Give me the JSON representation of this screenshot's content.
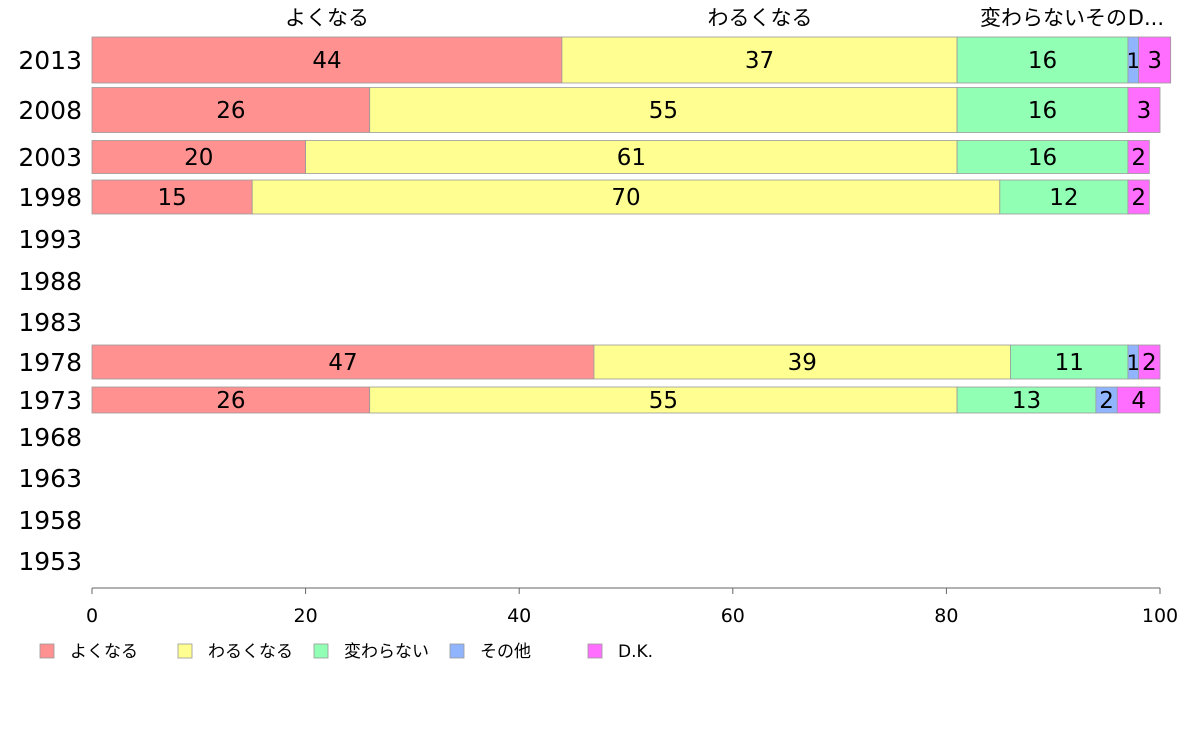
{
  "chart_data": {
    "type": "bar",
    "orientation": "horizontal",
    "stacked": true,
    "xlim": [
      0,
      100
    ],
    "x_ticks": [
      0,
      20,
      40,
      60,
      80,
      100
    ],
    "x_tick_labels": [
      "0",
      "20",
      "40",
      "60",
      "80",
      "100"
    ],
    "categories": [
      "2013",
      "2008",
      "2003",
      "1998",
      "1993",
      "1988",
      "1983",
      "1978",
      "1973",
      "1968",
      "1963",
      "1958",
      "1953"
    ],
    "series": [
      {
        "name": "よくなる",
        "color": "#ff9191",
        "values": [
          44,
          26,
          20,
          15,
          null,
          null,
          null,
          47,
          26,
          null,
          null,
          null,
          null
        ]
      },
      {
        "name": "わるくなる",
        "color": "#ffff91",
        "values": [
          37,
          55,
          61,
          70,
          null,
          null,
          null,
          39,
          55,
          null,
          null,
          null,
          null
        ]
      },
      {
        "name": "変わらない",
        "color": "#91ffb4",
        "values": [
          16,
          16,
          16,
          12,
          null,
          null,
          null,
          11,
          13,
          null,
          null,
          null,
          null
        ]
      },
      {
        "name": "その他",
        "color": "#91b4ff",
        "values": [
          1,
          0,
          0,
          0,
          null,
          null,
          null,
          1,
          2,
          null,
          null,
          null,
          null
        ]
      },
      {
        "name": "D.K.",
        "color": "#ff6eff",
        "values": [
          3,
          3,
          2,
          2,
          null,
          null,
          null,
          2,
          4,
          null,
          null,
          null,
          null
        ]
      }
    ],
    "top_labels": [
      "よくなる",
      "わるくなる",
      "変わらないその",
      "D..."
    ],
    "legend": {
      "position": "bottom",
      "labels": [
        "よくなる",
        "わるくなる",
        "変わらない",
        "その他",
        "D.K."
      ]
    }
  }
}
